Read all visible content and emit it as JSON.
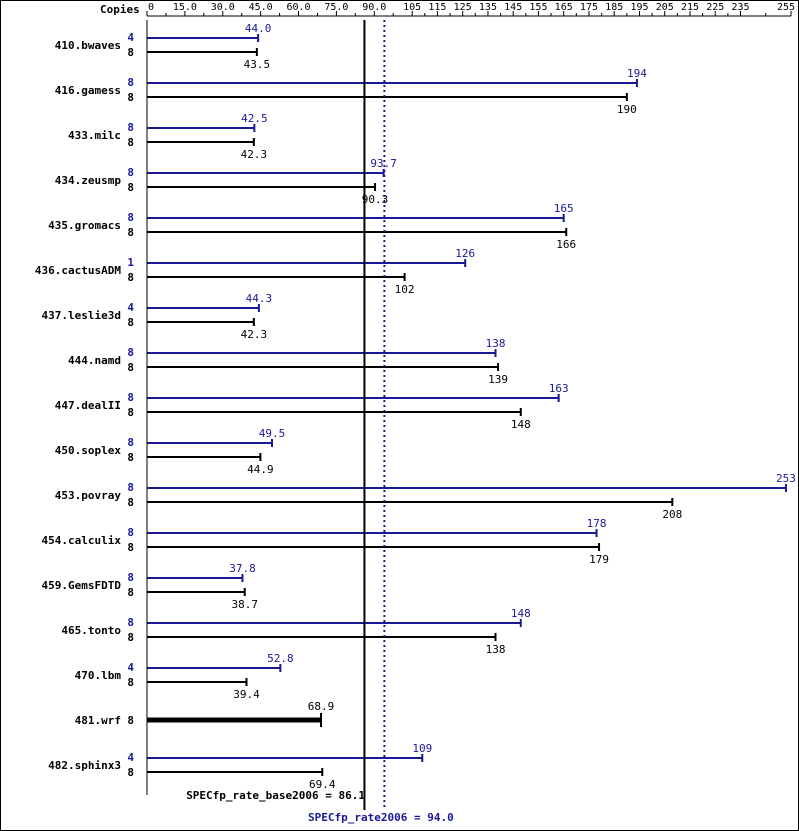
{
  "chart_data": {
    "type": "bar",
    "orientation": "horizontal",
    "copies_header": "Copies",
    "xlim": [
      0,
      255
    ],
    "ticks": [
      "0",
      "15.0",
      "30.0",
      "45.0",
      "60.0",
      "75.0",
      "90.0",
      "105",
      "115",
      "125",
      "135",
      "145",
      "155",
      "165",
      "175",
      "185",
      "195",
      "205",
      "215",
      "225",
      "235",
      "255"
    ],
    "tick_values": [
      0,
      15,
      30,
      45,
      60,
      75,
      90,
      105,
      115,
      125,
      135,
      145,
      155,
      165,
      175,
      185,
      195,
      205,
      215,
      225,
      235,
      255
    ],
    "benchmarks": [
      {
        "name": "410.bwaves",
        "peak": {
          "copies": "4",
          "value": 44.0,
          "label": "44.0"
        },
        "base": {
          "copies": "8",
          "value": 43.5,
          "label": "43.5"
        }
      },
      {
        "name": "416.gamess",
        "peak": {
          "copies": "8",
          "value": 194,
          "label": "194"
        },
        "base": {
          "copies": "8",
          "value": 190,
          "label": "190"
        }
      },
      {
        "name": "433.milc",
        "peak": {
          "copies": "8",
          "value": 42.5,
          "label": "42.5"
        },
        "base": {
          "copies": "8",
          "value": 42.3,
          "label": "42.3"
        }
      },
      {
        "name": "434.zeusmp",
        "peak": {
          "copies": "8",
          "value": 93.7,
          "label": "93.7"
        },
        "base": {
          "copies": "8",
          "value": 90.3,
          "label": "90.3"
        }
      },
      {
        "name": "435.gromacs",
        "peak": {
          "copies": "8",
          "value": 165,
          "label": "165"
        },
        "base": {
          "copies": "8",
          "value": 166,
          "label": "166"
        }
      },
      {
        "name": "436.cactusADM",
        "peak": {
          "copies": "1",
          "value": 126,
          "label": "126"
        },
        "base": {
          "copies": "8",
          "value": 102,
          "label": "102"
        }
      },
      {
        "name": "437.leslie3d",
        "peak": {
          "copies": "4",
          "value": 44.3,
          "label": "44.3"
        },
        "base": {
          "copies": "8",
          "value": 42.3,
          "label": "42.3"
        }
      },
      {
        "name": "444.namd",
        "peak": {
          "copies": "8",
          "value": 138,
          "label": "138"
        },
        "base": {
          "copies": "8",
          "value": 139,
          "label": "139"
        }
      },
      {
        "name": "447.dealII",
        "peak": {
          "copies": "8",
          "value": 163,
          "label": "163"
        },
        "base": {
          "copies": "8",
          "value": 148,
          "label": "148"
        }
      },
      {
        "name": "450.soplex",
        "peak": {
          "copies": "8",
          "value": 49.5,
          "label": "49.5"
        },
        "base": {
          "copies": "8",
          "value": 44.9,
          "label": "44.9"
        }
      },
      {
        "name": "453.povray",
        "peak": {
          "copies": "8",
          "value": 253,
          "label": "253"
        },
        "base": {
          "copies": "8",
          "value": 208,
          "label": "208"
        }
      },
      {
        "name": "454.calculix",
        "peak": {
          "copies": "8",
          "value": 178,
          "label": "178"
        },
        "base": {
          "copies": "8",
          "value": 179,
          "label": "179"
        }
      },
      {
        "name": "459.GemsFDTD",
        "peak": {
          "copies": "8",
          "value": 37.8,
          "label": "37.8"
        },
        "base": {
          "copies": "8",
          "value": 38.7,
          "label": "38.7"
        }
      },
      {
        "name": "465.tonto",
        "peak": {
          "copies": "8",
          "value": 148,
          "label": "148"
        },
        "base": {
          "copies": "8",
          "value": 138,
          "label": "138"
        }
      },
      {
        "name": "470.lbm",
        "peak": {
          "copies": "4",
          "value": 52.8,
          "label": "52.8"
        },
        "base": {
          "copies": "8",
          "value": 39.4,
          "label": "39.4"
        }
      },
      {
        "name": "481.wrf",
        "peak": null,
        "base": {
          "copies": "8",
          "value": 68.9,
          "label": "68.9"
        }
      },
      {
        "name": "482.sphinx3",
        "peak": {
          "copies": "4",
          "value": 109,
          "label": "109"
        },
        "base": {
          "copies": "8",
          "value": 69.4,
          "label": "69.4"
        }
      }
    ],
    "summary": {
      "base_label": "SPECfp_rate_base2006 = 86.1",
      "base_value": 86.1,
      "peak_label": "SPECfp_rate2006 = 94.0",
      "peak_value": 94.0
    },
    "colors": {
      "peak": "#191996",
      "base": "#000000",
      "frame": "#000000"
    }
  }
}
